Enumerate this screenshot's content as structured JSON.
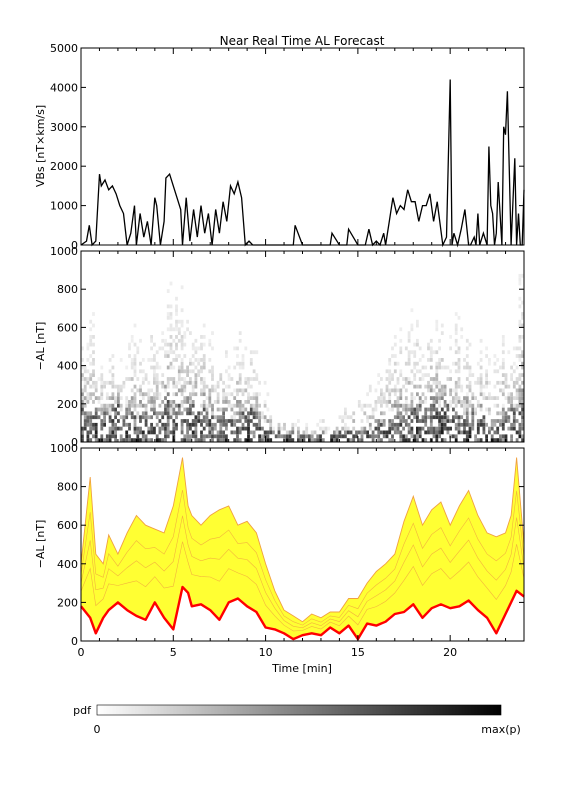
{
  "title": "Near Real Time AL Forecast",
  "colors": {
    "background": "#ffffff",
    "axis": "#000000",
    "vbs_line": "#000000",
    "envelope_fill": "#ffff33",
    "envelope_edge": "#f0a040",
    "median_line": "#ff0000"
  },
  "chart_data": [
    {
      "type": "line",
      "panel": "top",
      "title": "Near Real Time AL Forecast",
      "xlabel": "",
      "ylabel": "VBs [nT×km/s]",
      "xlim": [
        0,
        24
      ],
      "ylim": [
        0,
        5000
      ],
      "yticks": [
        0,
        1000,
        2000,
        3000,
        4000,
        5000
      ],
      "x_tick_labels_shown": false,
      "series": [
        {
          "x": [
            0,
            0.3,
            0.45,
            0.6,
            0.8,
            1.0,
            1.1,
            1.3,
            1.5,
            1.7,
            1.9,
            2.1,
            2.3,
            2.5,
            2.7,
            2.9,
            3.0,
            3.2,
            3.4,
            3.6,
            3.8,
            4.0,
            4.1,
            4.3,
            4.5,
            4.6,
            4.8,
            5.0,
            5.2,
            5.4,
            5.5,
            5.7,
            5.9,
            6.1,
            6.3,
            6.5,
            6.7,
            6.9,
            7.1,
            7.3,
            7.5,
            7.7,
            7.9,
            8.1,
            8.3,
            8.5,
            8.7,
            8.9,
            9.1,
            9.3,
            9.5,
            9.7,
            9.9,
            10.0,
            11.0,
            11.5,
            11.6,
            12.0,
            13.0,
            13.5,
            13.6,
            14.0,
            14.2,
            14.4,
            14.5,
            15.0,
            15.4,
            15.6,
            15.8,
            16.0,
            16.2,
            16.4,
            16.5,
            16.7,
            16.9,
            17.1,
            17.3,
            17.5,
            17.7,
            17.9,
            18.1,
            18.3,
            18.5,
            18.7,
            18.9,
            19.1,
            19.3,
            19.6,
            19.8,
            20.0,
            20.1,
            20.2,
            20.4,
            20.6,
            20.8,
            21.0,
            21.1,
            21.3,
            21.4,
            21.5,
            21.6,
            21.8,
            22.0,
            22.1,
            22.2,
            22.3,
            22.4,
            22.5,
            22.6,
            22.8,
            22.9,
            23.0,
            23.1,
            23.2,
            23.3,
            23.5,
            23.6,
            23.7,
            23.8,
            23.9,
            24.0
          ],
          "values": [
            0,
            100,
            500,
            0,
            100,
            1800,
            1500,
            1650,
            1400,
            1500,
            1300,
            1000,
            800,
            0,
            300,
            1000,
            0,
            800,
            200,
            600,
            0,
            1200,
            1000,
            0,
            600,
            1700,
            1800,
            1500,
            1200,
            900,
            0,
            1200,
            100,
            900,
            200,
            1000,
            300,
            800,
            0,
            900,
            300,
            1100,
            600,
            1500,
            1300,
            1600,
            1200,
            0,
            100,
            0,
            0,
            0,
            0,
            0,
            0,
            0,
            500,
            0,
            0,
            0,
            300,
            0,
            0,
            0,
            400,
            0,
            0,
            400,
            0,
            100,
            0,
            300,
            0,
            600,
            1200,
            800,
            1000,
            900,
            1400,
            1100,
            1100,
            600,
            1000,
            1000,
            1300,
            600,
            1100,
            0,
            200,
            4200,
            0,
            300,
            0,
            400,
            900,
            0,
            0,
            200,
            0,
            800,
            0,
            300,
            0,
            2500,
            1000,
            800,
            0,
            300,
            1600,
            0,
            3000,
            2800,
            3900,
            2000,
            0,
            2200,
            0,
            800,
            0,
            0,
            1400
          ]
        }
      ]
    },
    {
      "type": "heatmap",
      "panel": "middle",
      "xlabel": "",
      "ylabel": "−AL [nT]",
      "xlim": [
        0,
        24
      ],
      "ylim": [
        0,
        1000
      ],
      "yticks": [
        0,
        200,
        400,
        600,
        800,
        1000
      ],
      "x_tick_labels_shown": false,
      "colorscale": "white-to-black probability density",
      "note_values": "probability density of -AL per time bin; dark near low -AL, broadening during active intervals",
      "activity_profile_x": [
        0,
        2,
        3.5,
        5.5,
        7,
        9,
        10.5,
        12,
        14,
        16,
        18,
        19.5,
        21,
        22.5,
        24
      ],
      "activity_profile_median": [
        180,
        160,
        120,
        200,
        120,
        150,
        40,
        30,
        40,
        60,
        150,
        200,
        140,
        80,
        200
      ],
      "activity_profile_max": [
        800,
        500,
        700,
        950,
        600,
        700,
        200,
        100,
        150,
        400,
        800,
        750,
        700,
        500,
        950
      ]
    },
    {
      "type": "area",
      "panel": "bottom",
      "xlabel": "Time [min]",
      "ylabel": "−AL [nT]",
      "xlim": [
        0,
        24
      ],
      "ylim": [
        0,
        1000
      ],
      "xticks": [
        0,
        5,
        10,
        15,
        20
      ],
      "yticks": [
        0,
        200,
        400,
        600,
        800,
        1000
      ],
      "series": [
        {
          "role": "upper-envelope",
          "x": [
            0,
            0.5,
            0.8,
            1.2,
            1.5,
            2.0,
            2.5,
            3.0,
            3.5,
            4.0,
            4.5,
            5.0,
            5.5,
            5.8,
            6.0,
            6.5,
            7.0,
            7.5,
            8.0,
            8.5,
            9.0,
            9.5,
            10.0,
            10.5,
            11.0,
            11.5,
            12.0,
            12.5,
            13.0,
            13.5,
            14.0,
            14.5,
            15.0,
            15.5,
            16.0,
            16.5,
            17.0,
            17.5,
            18.0,
            18.5,
            19.0,
            19.5,
            20.0,
            20.5,
            21.0,
            21.5,
            22.0,
            22.5,
            23.0,
            23.3,
            23.6,
            24.0
          ],
          "values": [
            400,
            850,
            450,
            400,
            550,
            450,
            560,
            650,
            600,
            580,
            560,
            700,
            950,
            700,
            650,
            600,
            650,
            680,
            700,
            600,
            620,
            560,
            400,
            260,
            160,
            130,
            100,
            140,
            120,
            150,
            150,
            220,
            220,
            300,
            360,
            400,
            450,
            620,
            750,
            600,
            680,
            720,
            600,
            700,
            780,
            650,
            560,
            540,
            560,
            650,
            950,
            500
          ]
        },
        {
          "role": "median",
          "x": [
            0,
            0.5,
            0.8,
            1.2,
            1.5,
            2.0,
            2.5,
            3.0,
            3.5,
            4.0,
            4.5,
            5.0,
            5.5,
            5.8,
            6.0,
            6.5,
            7.0,
            7.5,
            8.0,
            8.5,
            9.0,
            9.5,
            10.0,
            10.5,
            11.0,
            11.5,
            12.0,
            12.5,
            13.0,
            13.5,
            14.0,
            14.5,
            15.0,
            15.5,
            16.0,
            16.5,
            17.0,
            17.5,
            18.0,
            18.5,
            19.0,
            19.5,
            20.0,
            20.5,
            21.0,
            21.5,
            22.0,
            22.5,
            23.0,
            23.3,
            23.6,
            24.0
          ],
          "values": [
            180,
            120,
            40,
            120,
            160,
            200,
            160,
            130,
            110,
            200,
            120,
            60,
            280,
            250,
            180,
            190,
            160,
            110,
            200,
            220,
            180,
            150,
            70,
            60,
            40,
            10,
            30,
            40,
            30,
            70,
            40,
            80,
            10,
            90,
            80,
            100,
            140,
            150,
            190,
            120,
            170,
            190,
            170,
            180,
            210,
            160,
            120,
            40,
            140,
            200,
            260,
            230
          ]
        }
      ]
    }
  ],
  "colorbar": {
    "label": "pdf",
    "min_label": "0",
    "max_label": "max(p)"
  }
}
